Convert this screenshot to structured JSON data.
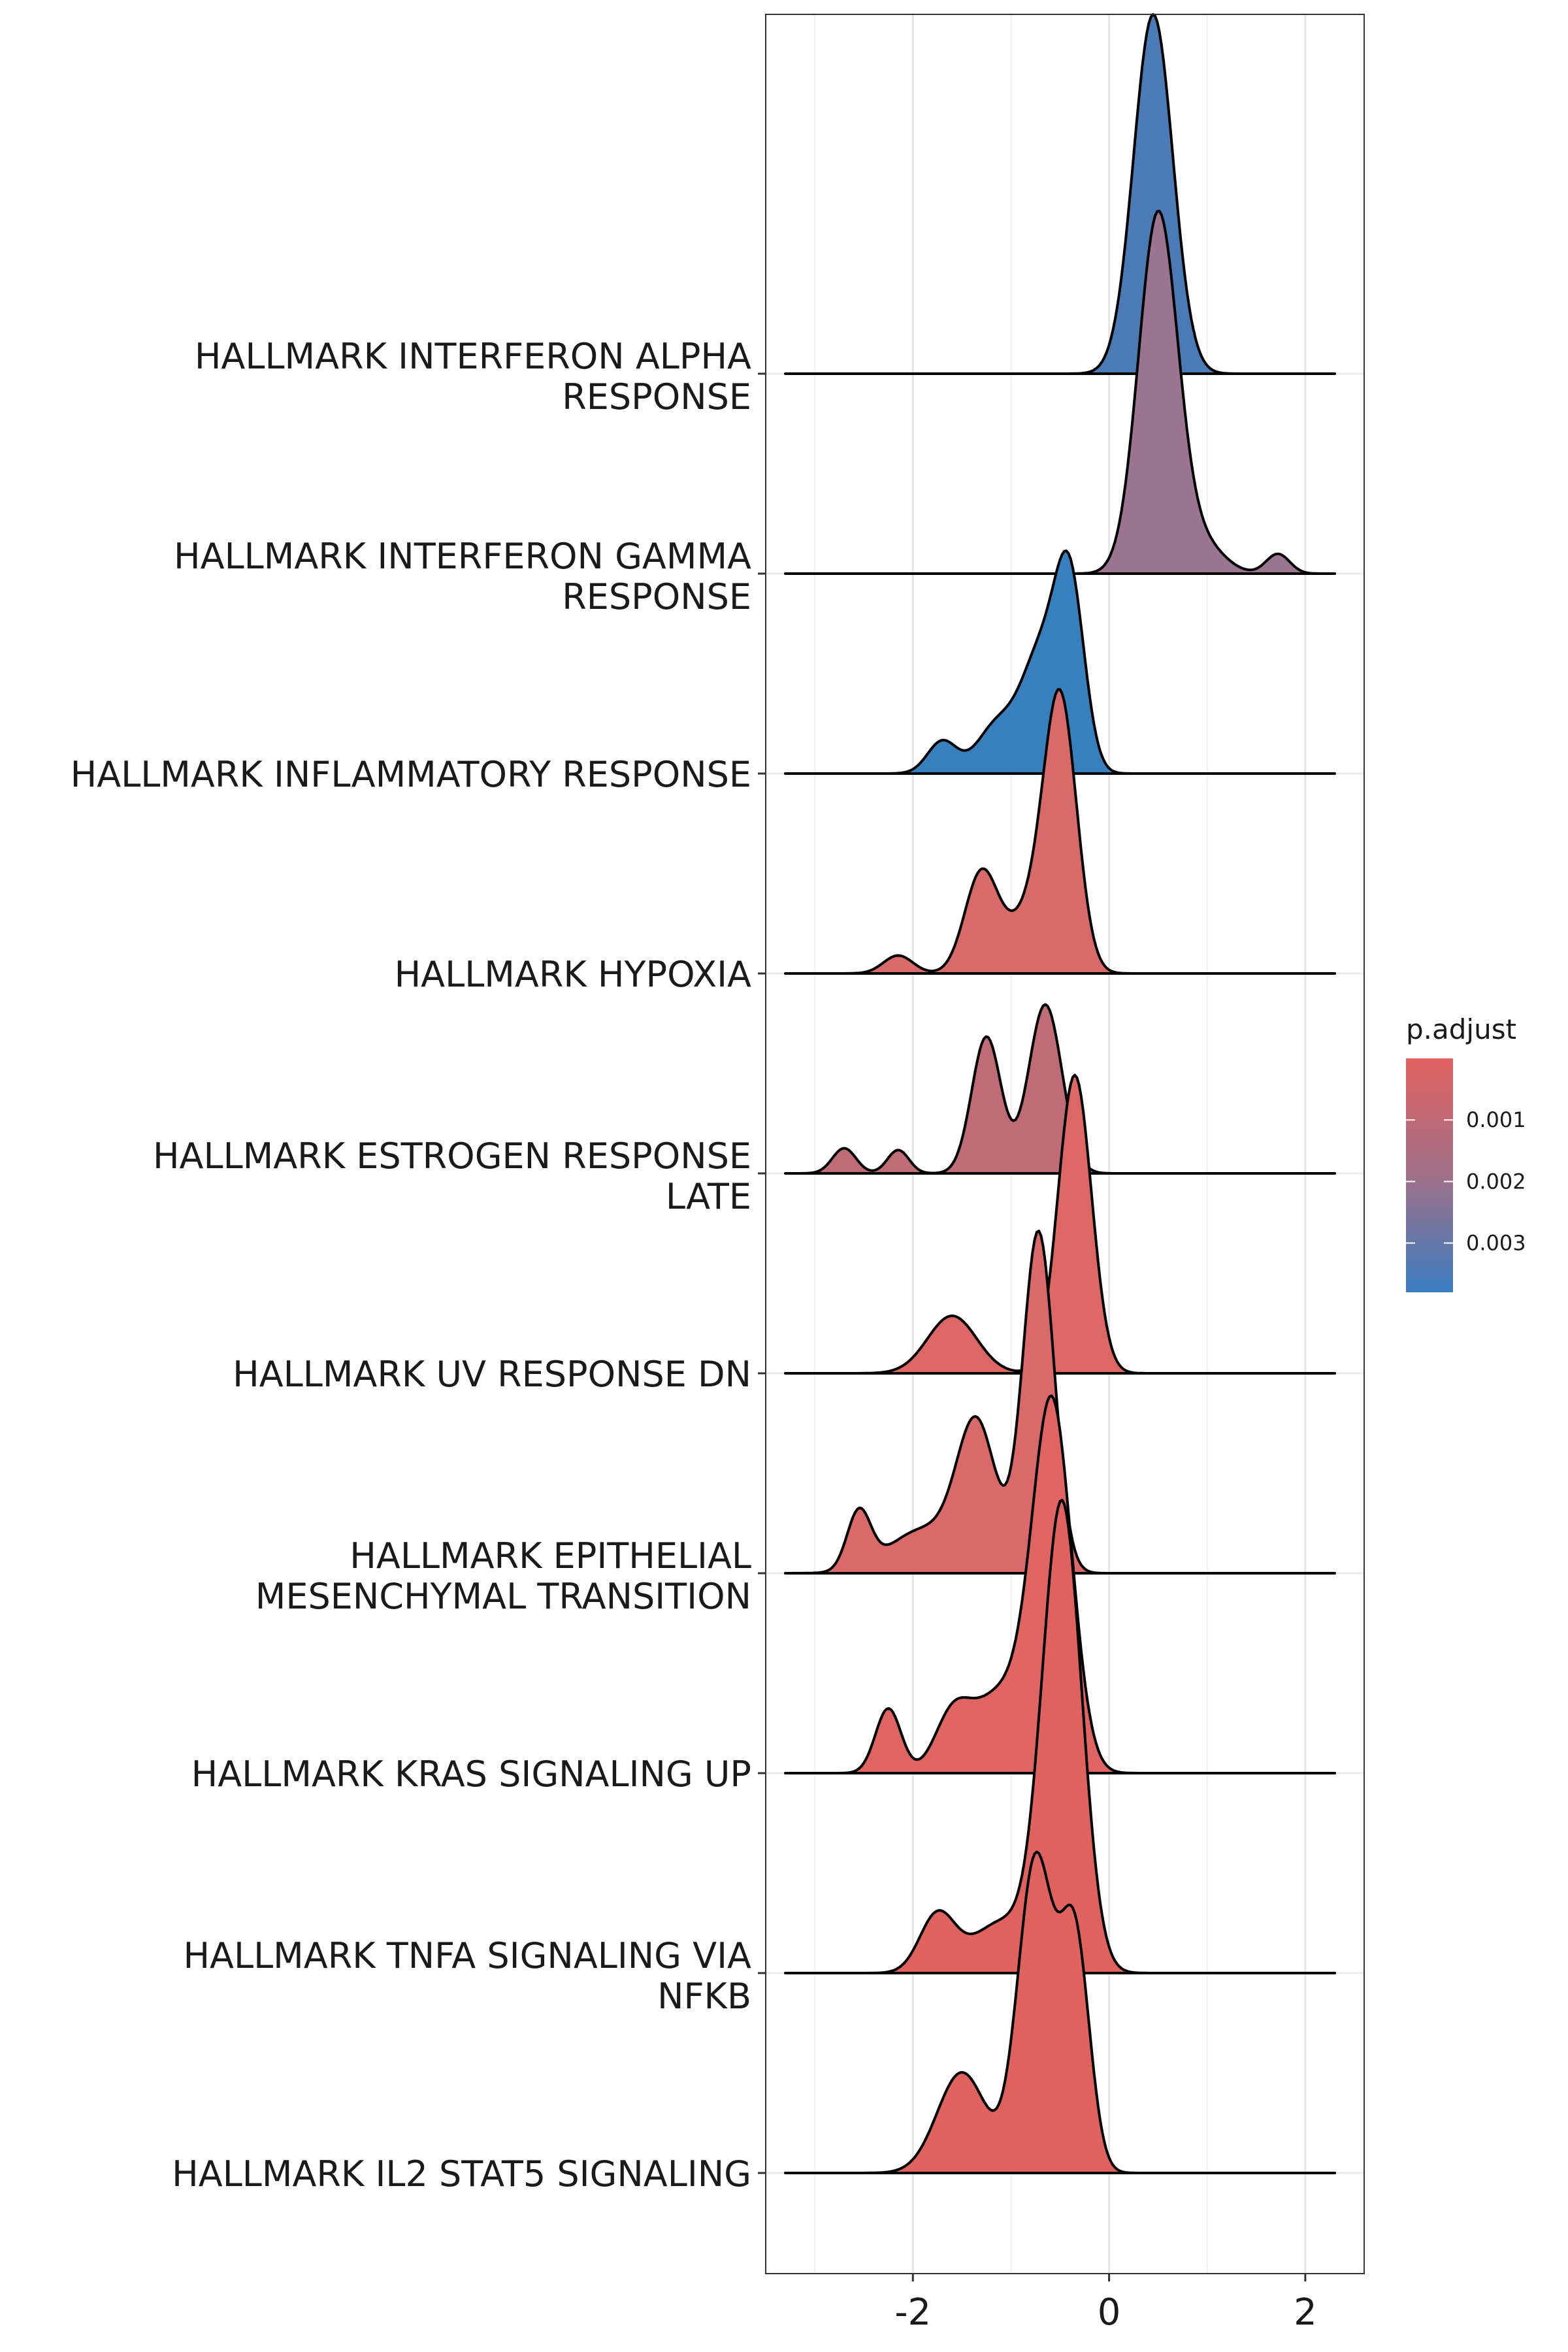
{
  "chart_data": {
    "type": "ridgeline",
    "title": "",
    "xlabel": "",
    "ylabel": "",
    "xlim": [
      -3.5,
      2.6
    ],
    "x_ticks": [
      "-2",
      "0",
      "2"
    ],
    "x_tick_values": [
      -2,
      0,
      2
    ],
    "grid": true,
    "fill_scale": {
      "name": "p.adjust",
      "low_color": "#e0625e",
      "high_color": "#3a7cc0",
      "range": [
        0.0,
        0.0038
      ],
      "ticks": [
        "0.001",
        "0.002",
        "0.003"
      ],
      "tick_values": [
        0.001,
        0.002,
        0.003
      ]
    },
    "series": [
      {
        "name": "HALLMARK INTERFERON ALPHA\nRESPONSE",
        "p_adjust": 0.0038,
        "color": "#4a7bb7",
        "peaks": [
          {
            "mu": 0.45,
            "sigma": 0.2,
            "h": 1.0
          }
        ]
      },
      {
        "name": "HALLMARK INTERFERON GAMMA\nRESPONSE",
        "p_adjust": 0.0027,
        "color": "#9b7490",
        "peaks": [
          {
            "mu": 0.5,
            "sigma": 0.2,
            "h": 1.0
          },
          {
            "mu": 0.95,
            "sigma": 0.22,
            "h": 0.08
          },
          {
            "mu": 1.72,
            "sigma": 0.12,
            "h": 0.055
          }
        ]
      },
      {
        "name": "HALLMARK INFLAMMATORY RESPONSE",
        "p_adjust": 0.0038,
        "color": "#3680bd",
        "peaks": [
          {
            "mu": -0.4,
            "sigma": 0.15,
            "h": 0.5
          },
          {
            "mu": -0.7,
            "sigma": 0.2,
            "h": 0.32
          },
          {
            "mu": -1.15,
            "sigma": 0.2,
            "h": 0.13
          },
          {
            "mu": -1.7,
            "sigma": 0.15,
            "h": 0.09
          }
        ]
      },
      {
        "name": "HALLMARK HYPOXIA",
        "p_adjust": 0.0008,
        "color": "#d86a69",
        "peaks": [
          {
            "mu": -0.5,
            "sigma": 0.17,
            "h": 0.76
          },
          {
            "mu": -1.3,
            "sigma": 0.17,
            "h": 0.28
          },
          {
            "mu": -0.85,
            "sigma": 0.2,
            "h": 0.14
          },
          {
            "mu": -2.15,
            "sigma": 0.15,
            "h": 0.05
          }
        ]
      },
      {
        "name": "HALLMARK ESTROGEN RESPONSE\nLATE",
        "p_adjust": 0.0017,
        "color": "#bf6c77",
        "peaks": [
          {
            "mu": -0.65,
            "sigma": 0.17,
            "h": 0.47
          },
          {
            "mu": -1.25,
            "sigma": 0.15,
            "h": 0.38
          },
          {
            "mu": -2.15,
            "sigma": 0.11,
            "h": 0.065
          },
          {
            "mu": -2.7,
            "sigma": 0.12,
            "h": 0.07
          }
        ]
      },
      {
        "name": "HALLMARK UV RESPONSE DN",
        "p_adjust": 0.0005,
        "color": "#dd6765",
        "peaks": [
          {
            "mu": -0.35,
            "sigma": 0.17,
            "h": 0.83
          },
          {
            "mu": -1.6,
            "sigma": 0.25,
            "h": 0.16
          }
        ]
      },
      {
        "name": "HALLMARK EPITHELIAL\nMESENCHYMAL TRANSITION",
        "p_adjust": 0.0009,
        "color": "#d96a69",
        "peaks": [
          {
            "mu": -0.72,
            "sigma": 0.16,
            "h": 0.95
          },
          {
            "mu": -1.35,
            "sigma": 0.2,
            "h": 0.4
          },
          {
            "mu": -1.9,
            "sigma": 0.35,
            "h": 0.12
          },
          {
            "mu": -2.55,
            "sigma": 0.12,
            "h": 0.16
          }
        ]
      },
      {
        "name": "HALLMARK KRAS SIGNALING UP",
        "p_adjust": 0.0003,
        "color": "#df6462",
        "peaks": [
          {
            "mu": -0.58,
            "sigma": 0.2,
            "h": 1.0
          },
          {
            "mu": -1.1,
            "sigma": 0.3,
            "h": 0.22
          },
          {
            "mu": -1.6,
            "sigma": 0.18,
            "h": 0.14
          },
          {
            "mu": -2.25,
            "sigma": 0.13,
            "h": 0.18
          }
        ]
      },
      {
        "name": "HALLMARK TNFA SIGNALING VIA\nNFKB",
        "p_adjust": 0.0002,
        "color": "#e0625f",
        "peaks": [
          {
            "mu": -0.48,
            "sigma": 0.2,
            "h": 1.3
          },
          {
            "mu": -1.1,
            "sigma": 0.3,
            "h": 0.14
          },
          {
            "mu": -1.75,
            "sigma": 0.18,
            "h": 0.16
          }
        ]
      },
      {
        "name": "HALLMARK IL2 STAT5 SIGNALING",
        "p_adjust": 0.0002,
        "color": "#e0625f",
        "peaks": [
          {
            "mu": -0.75,
            "sigma": 0.18,
            "h": 0.87
          },
          {
            "mu": -0.35,
            "sigma": 0.15,
            "h": 0.65
          },
          {
            "mu": -1.5,
            "sigma": 0.25,
            "h": 0.28
          }
        ]
      }
    ]
  }
}
